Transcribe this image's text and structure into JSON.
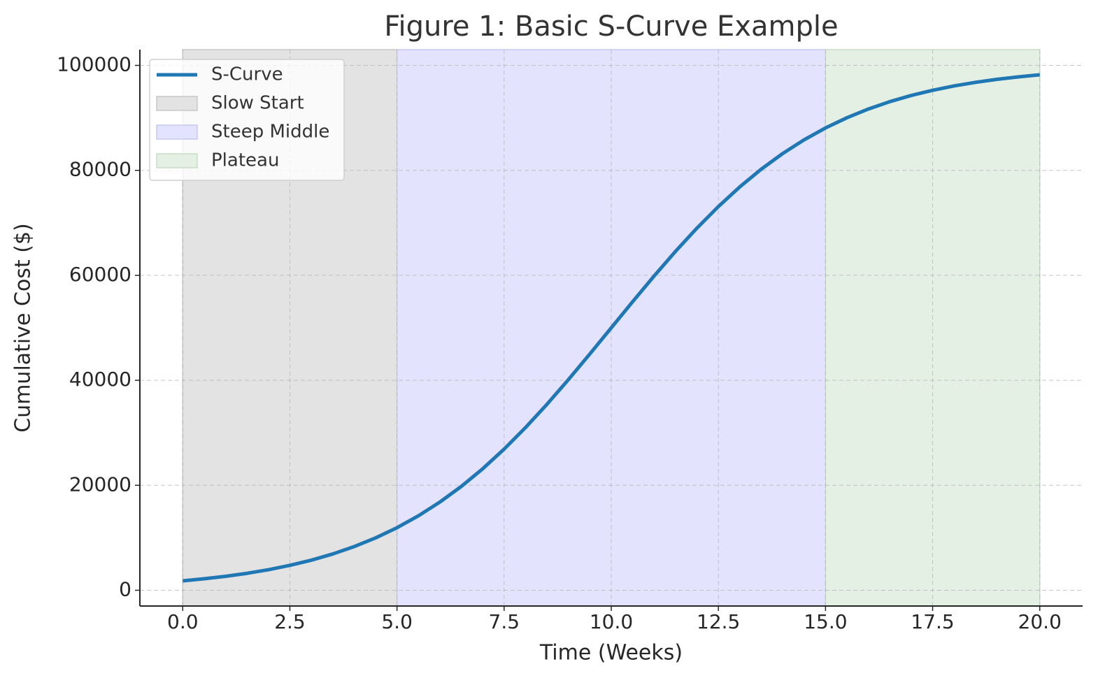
{
  "chart_data": {
    "type": "line",
    "title": "Figure 1: Basic S-Curve Example",
    "x_label": "Time (Weeks)",
    "y_label": "Cumulative Cost ($)",
    "x": [
      0,
      0.5,
      1,
      1.5,
      2,
      2.5,
      3,
      3.5,
      4,
      4.5,
      5,
      5.5,
      6,
      6.5,
      7,
      7.5,
      8,
      8.5,
      9,
      9.5,
      10,
      10.5,
      11,
      11.5,
      12,
      12.5,
      13,
      13.5,
      14,
      14.5,
      15,
      15.5,
      16,
      16.5,
      17,
      17.5,
      18,
      18.5,
      19,
      19.5,
      20
    ],
    "series": [
      {
        "name": "S-Curve",
        "color": "#1f77b4",
        "values": [
          1799,
          2188,
          2660,
          3230,
          3917,
          4743,
          5732,
          6914,
          8318,
          9975,
          11920,
          14185,
          16798,
          19782,
          23148,
          26894,
          31003,
          35434,
          40131,
          45017,
          50000,
          54983,
          59869,
          64566,
          68997,
          73106,
          76852,
          80218,
          83202,
          85815,
          88080,
          90025,
          91682,
          93086,
          94268,
          95257,
          96083,
          96770,
          97340,
          97812,
          98201
        ]
      }
    ],
    "regions": [
      {
        "name": "Slow Start",
        "start": 0,
        "end": 5,
        "color": "#e3e3e3",
        "edge": "#c8c8c8"
      },
      {
        "name": "Steep Middle",
        "start": 5,
        "end": 15,
        "color": "#e3e3fd",
        "edge": "#c8c8f0"
      },
      {
        "name": "Plateau",
        "start": 15,
        "end": 20,
        "color": "#e5f0e5",
        "edge": "#c8dcc8"
      }
    ],
    "xlim": [
      -1,
      21
    ],
    "ylim": [
      -3000,
      103000
    ],
    "xticks": [
      {
        "value": 0,
        "label": "0.0"
      },
      2.5,
      {
        "value": 5,
        "label": "5.0"
      },
      7.5,
      {
        "value": 10,
        "label": "10.0"
      },
      12.5,
      {
        "value": 15,
        "label": "15.0"
      },
      17.5,
      {
        "value": 20,
        "label": "20.0"
      }
    ],
    "yticks": [
      0,
      20000,
      40000,
      60000,
      80000,
      100000
    ],
    "grid": true,
    "legend": "upper left"
  }
}
